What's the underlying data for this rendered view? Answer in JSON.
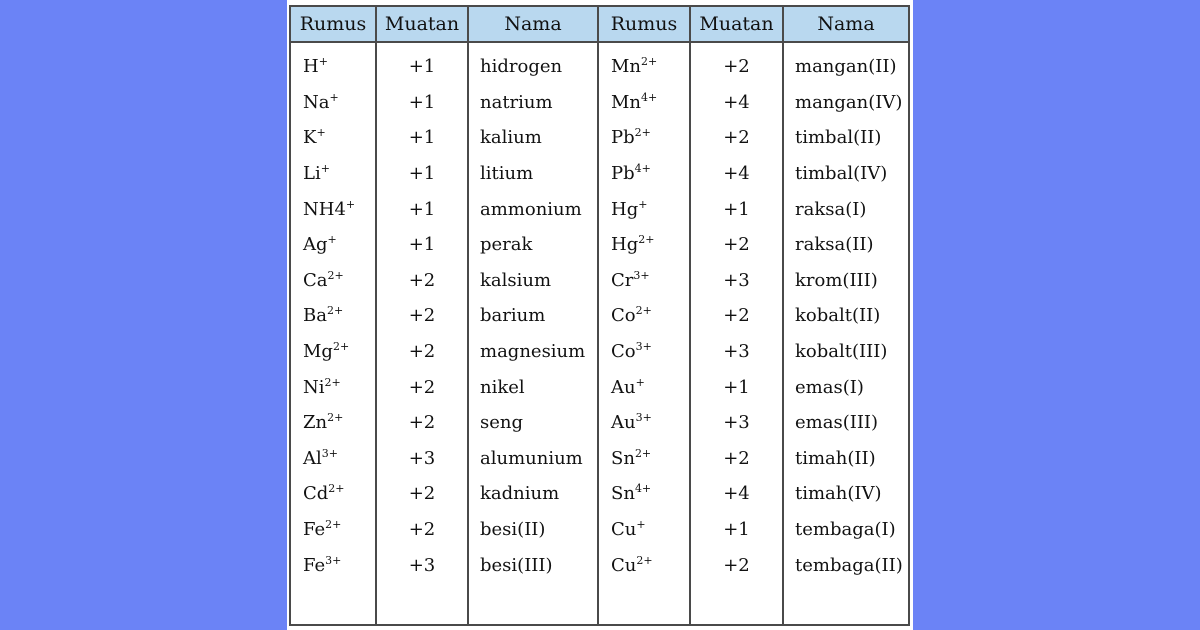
{
  "table": {
    "headers": [
      "Rumus",
      "Muatan",
      "Nama",
      "Rumus",
      "Muatan",
      "Nama"
    ],
    "rows": [
      {
        "f1": "H",
        "s1": "+",
        "c1": "+1",
        "n1": "hidrogen",
        "f2": "Mn",
        "s2": "2+",
        "c2": "+2",
        "n2": "mangan(II)"
      },
      {
        "f1": "Na",
        "s1": "+",
        "c1": "+1",
        "n1": "natrium",
        "f2": "Mn",
        "s2": "4+",
        "c2": "+4",
        "n2": "mangan(IV)"
      },
      {
        "f1": "K",
        "s1": "+",
        "c1": "+1",
        "n1": "kalium",
        "f2": "Pb",
        "s2": "2+",
        "c2": "+2",
        "n2": "timbal(II)"
      },
      {
        "f1": "Li",
        "s1": "+",
        "c1": "+1",
        "n1": "litium",
        "f2": "Pb",
        "s2": "4+",
        "c2": "+4",
        "n2": "timbal(IV)"
      },
      {
        "f1": "NH4",
        "s1": "+",
        "c1": "+1",
        "n1": "ammonium",
        "f2": "Hg",
        "s2": "+",
        "c2": "+1",
        "n2": "raksa(I)"
      },
      {
        "f1": "Ag",
        "s1": "+",
        "c1": "+1",
        "n1": "perak",
        "f2": "Hg",
        "s2": "2+",
        "c2": "+2",
        "n2": "raksa(II)"
      },
      {
        "f1": "Ca",
        "s1": "2+",
        "c1": "+2",
        "n1": "kalsium",
        "f2": "Cr",
        "s2": "3+",
        "c2": "+3",
        "n2": "krom(III)"
      },
      {
        "f1": "Ba",
        "s1": "2+",
        "c1": "+2",
        "n1": "barium",
        "f2": "Co",
        "s2": "2+",
        "c2": "+2",
        "n2": "kobalt(II)"
      },
      {
        "f1": "Mg",
        "s1": "2+",
        "c1": "+2",
        "n1": "magnesium",
        "f2": "Co",
        "s2": "3+",
        "c2": "+3",
        "n2": "kobalt(III)"
      },
      {
        "f1": "Ni",
        "s1": "2+",
        "c1": "+2",
        "n1": "nikel",
        "f2": "Au",
        "s2": "+",
        "c2": "+1",
        "n2": "emas(I)"
      },
      {
        "f1": "Zn",
        "s1": "2+",
        "c1": "+2",
        "n1": "seng",
        "f2": "Au",
        "s2": "3+",
        "c2": "+3",
        "n2": "emas(III)"
      },
      {
        "f1": "Al",
        "s1": "3+",
        "c1": "+3",
        "n1": "alumunium",
        "f2": "Sn",
        "s2": "2+",
        "c2": "+2",
        "n2": "timah(II)"
      },
      {
        "f1": "Cd",
        "s1": "2+",
        "c1": "+2",
        "n1": "kadnium",
        "f2": "Sn",
        "s2": "4+",
        "c2": "+4",
        "n2": "timah(IV)"
      },
      {
        "f1": "Fe",
        "s1": "2+",
        "c1": "+2",
        "n1": "besi(II)",
        "f2": "Cu",
        "s2": "+",
        "c2": "+1",
        "n2": "tembaga(I)"
      },
      {
        "f1": "Fe",
        "s1": "3+",
        "c1": "+3",
        "n1": "besi(III)",
        "f2": "Cu",
        "s2": "2+",
        "c2": "+2",
        "n2": "tembaga(II)"
      }
    ]
  },
  "colors": {
    "page_background": "#6b83f6",
    "header_background": "#b9d8ef",
    "grid_line": "#4a4a4a"
  }
}
